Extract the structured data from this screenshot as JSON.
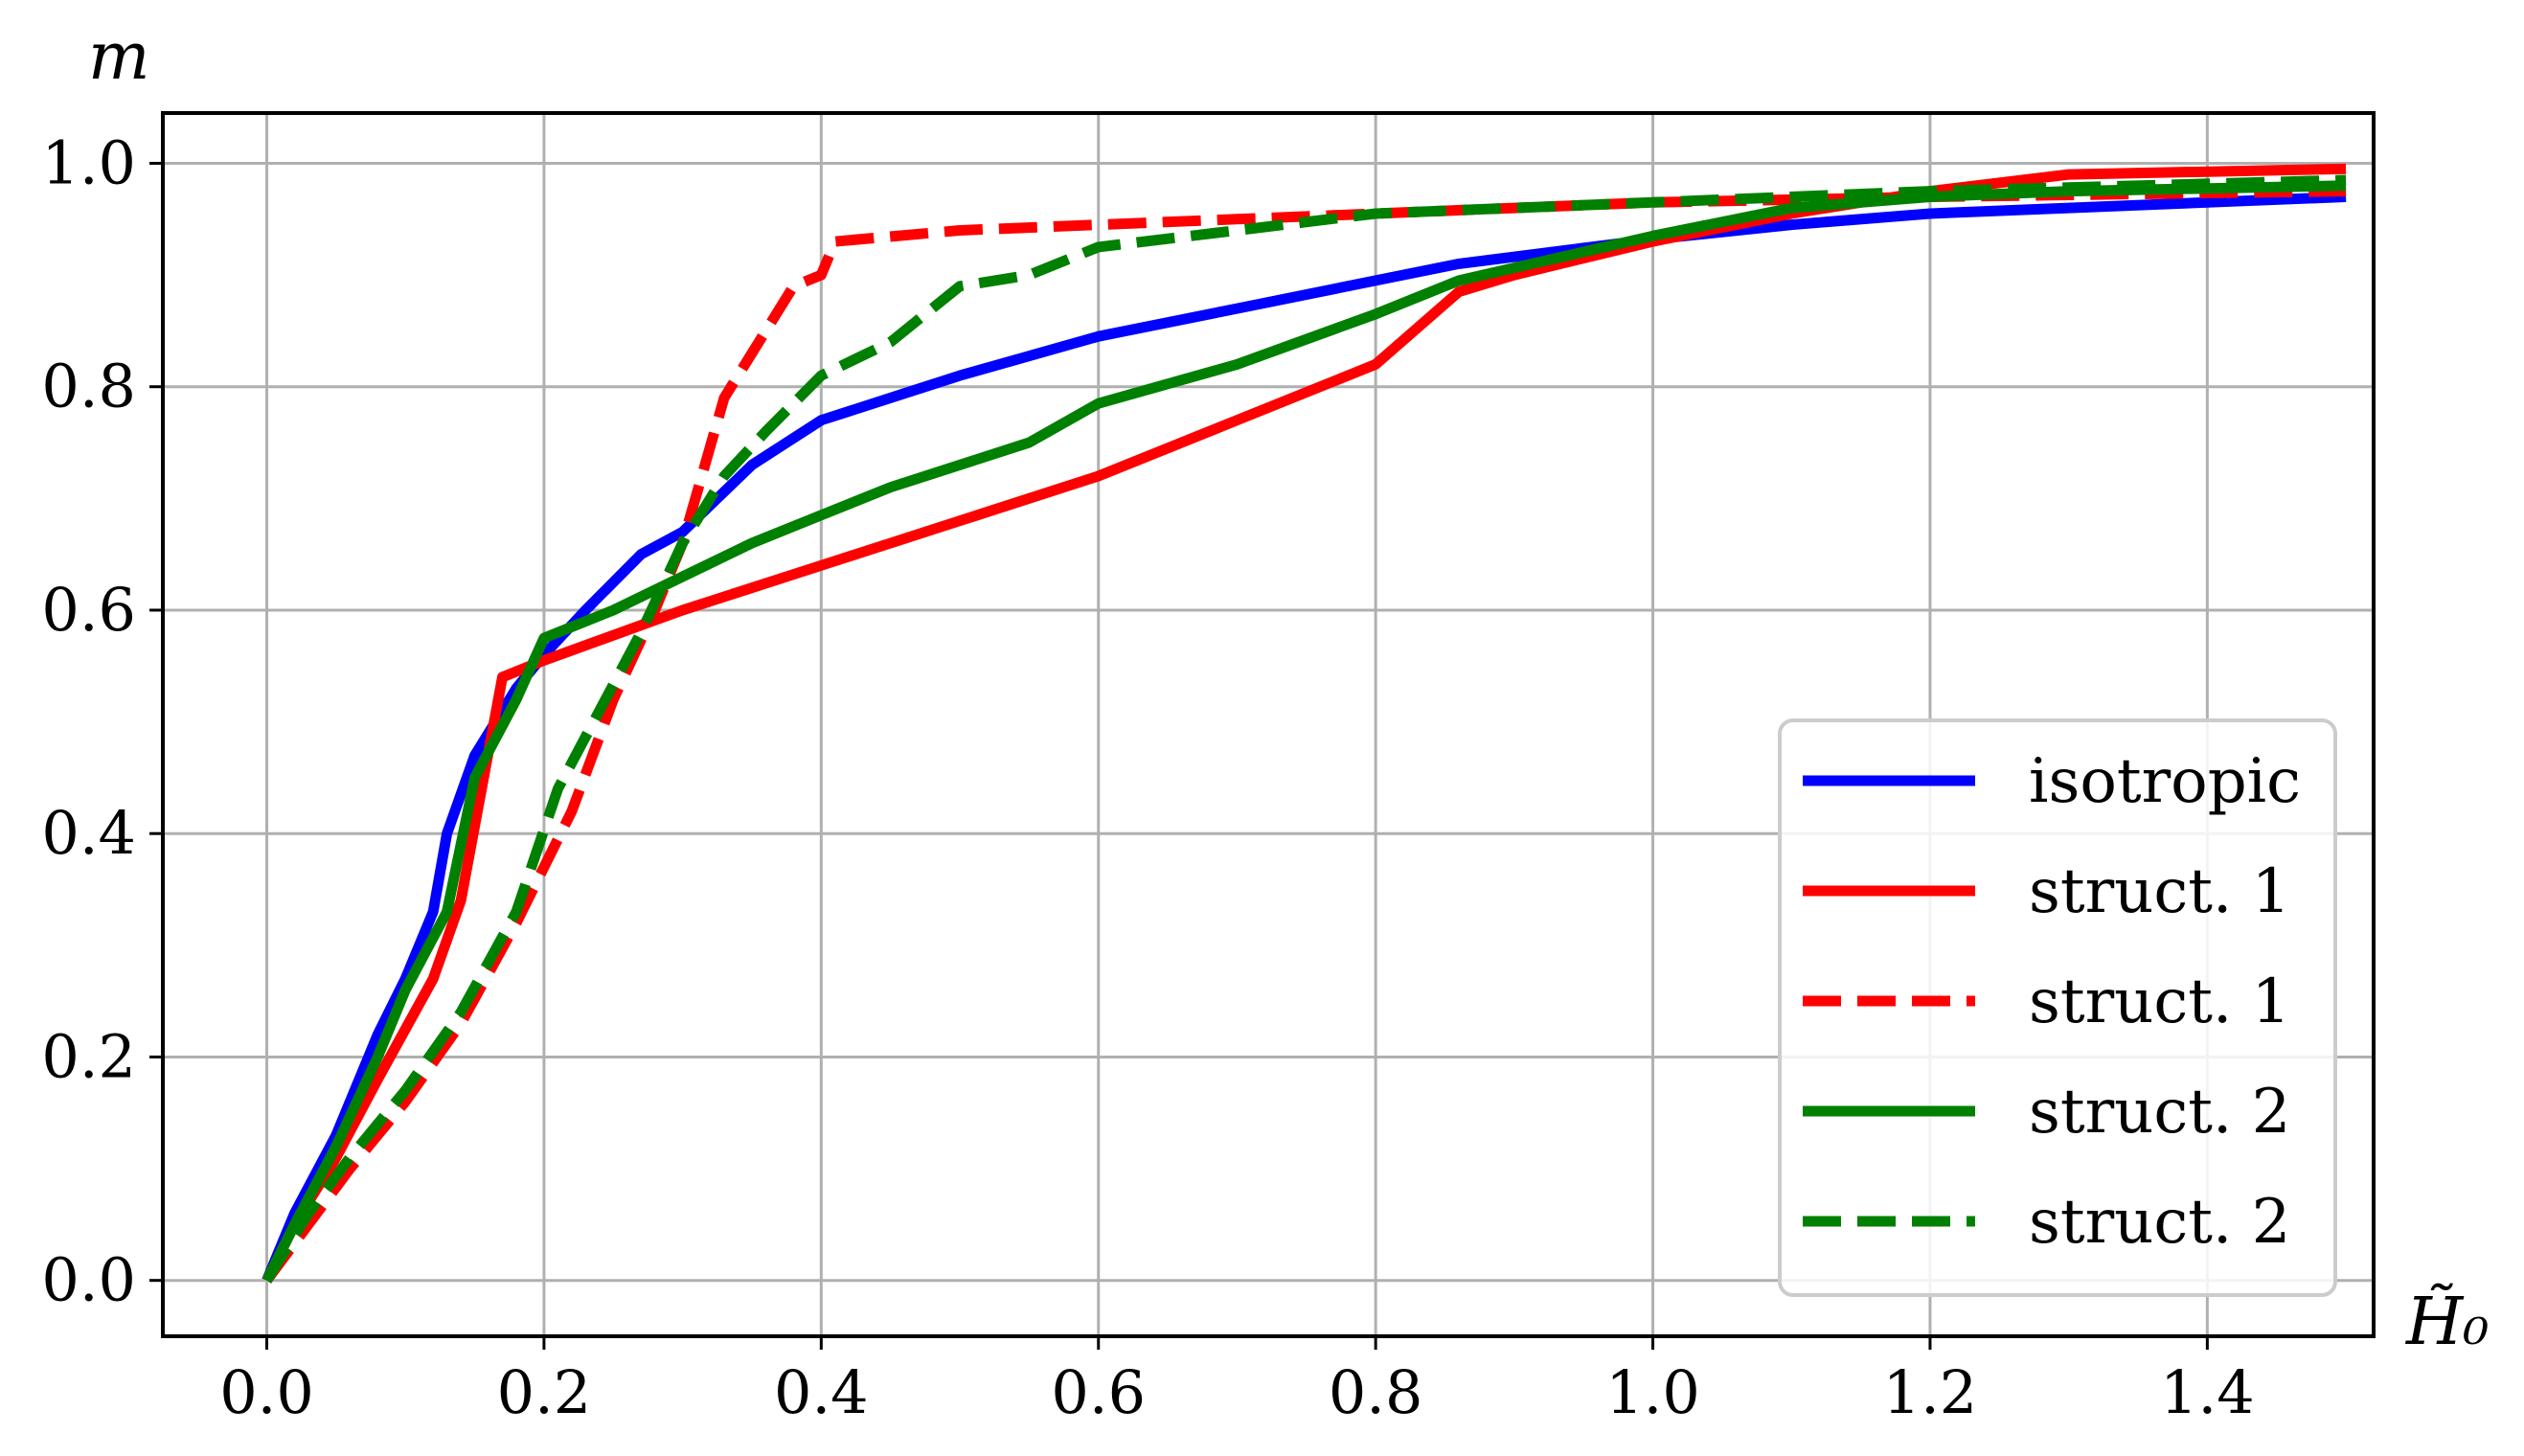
{
  "chart_data": {
    "type": "line",
    "title": "",
    "xlabel": "H̃₀",
    "ylabel": "m",
    "xlim": [
      -0.075,
      1.52
    ],
    "ylim": [
      -0.05,
      1.045
    ],
    "xticks": [
      0.0,
      0.2,
      0.4,
      0.6,
      0.8,
      1.0,
      1.2,
      1.4
    ],
    "xtick_labels": [
      "0.0",
      "0.2",
      "0.4",
      "0.6",
      "0.8",
      "1.0",
      "1.2",
      "1.4"
    ],
    "yticks": [
      0.0,
      0.2,
      0.4,
      0.6,
      0.8,
      1.0
    ],
    "ytick_labels": [
      "0.0",
      "0.2",
      "0.4",
      "0.6",
      "0.8",
      "1.0"
    ],
    "grid": true,
    "legend_position": "lower-right",
    "series": [
      {
        "name": "isotropic",
        "color": "#0000ff",
        "dash": "solid",
        "x": [
          0.0,
          0.02,
          0.05,
          0.08,
          0.1,
          0.12,
          0.13,
          0.15,
          0.18,
          0.2,
          0.23,
          0.27,
          0.3,
          0.35,
          0.4,
          0.45,
          0.5,
          0.6,
          0.7,
          0.8,
          0.86,
          1.0,
          1.1,
          1.2,
          1.3,
          1.5
        ],
        "y": [
          0.0,
          0.06,
          0.13,
          0.22,
          0.27,
          0.33,
          0.4,
          0.47,
          0.53,
          0.56,
          0.6,
          0.65,
          0.67,
          0.73,
          0.77,
          0.79,
          0.81,
          0.845,
          0.87,
          0.895,
          0.91,
          0.932,
          0.945,
          0.955,
          0.96,
          0.97
        ]
      },
      {
        "name": "struct. 1",
        "color": "#ff0000",
        "dash": "solid",
        "x": [
          0.0,
          0.02,
          0.05,
          0.08,
          0.12,
          0.14,
          0.17,
          0.2,
          0.3,
          0.4,
          0.5,
          0.6,
          0.7,
          0.8,
          0.86,
          0.9,
          1.0,
          1.1,
          1.2,
          1.3,
          1.5
        ],
        "y": [
          0.0,
          0.05,
          0.11,
          0.18,
          0.27,
          0.34,
          0.54,
          0.555,
          0.6,
          0.64,
          0.68,
          0.72,
          0.77,
          0.82,
          0.885,
          0.9,
          0.93,
          0.955,
          0.975,
          0.99,
          0.995
        ]
      },
      {
        "name": "struct. 1",
        "color": "#ff0000",
        "dash": "dashed",
        "x": [
          0.0,
          0.03,
          0.06,
          0.1,
          0.14,
          0.18,
          0.22,
          0.25,
          0.28,
          0.3,
          0.33,
          0.35,
          0.38,
          0.4,
          0.41,
          0.5,
          0.6,
          0.7,
          0.8,
          0.9,
          1.0,
          1.2,
          1.5
        ],
        "y": [
          0.0,
          0.05,
          0.1,
          0.16,
          0.23,
          0.32,
          0.42,
          0.52,
          0.6,
          0.66,
          0.79,
          0.83,
          0.89,
          0.9,
          0.93,
          0.94,
          0.945,
          0.95,
          0.955,
          0.96,
          0.965,
          0.97,
          0.975
        ]
      },
      {
        "name": "struct. 2",
        "color": "#008000",
        "dash": "solid",
        "x": [
          0.0,
          0.02,
          0.05,
          0.08,
          0.1,
          0.13,
          0.15,
          0.18,
          0.2,
          0.25,
          0.3,
          0.35,
          0.4,
          0.45,
          0.5,
          0.55,
          0.6,
          0.7,
          0.8,
          0.86,
          1.0,
          1.1,
          1.2,
          1.3,
          1.5
        ],
        "y": [
          0.0,
          0.05,
          0.12,
          0.2,
          0.26,
          0.33,
          0.45,
          0.52,
          0.575,
          0.6,
          0.63,
          0.66,
          0.685,
          0.71,
          0.73,
          0.75,
          0.785,
          0.82,
          0.865,
          0.895,
          0.935,
          0.96,
          0.97,
          0.975,
          0.98
        ]
      },
      {
        "name": "struct. 2",
        "color": "#008000",
        "dash": "dashed",
        "x": [
          0.0,
          0.03,
          0.06,
          0.1,
          0.14,
          0.18,
          0.21,
          0.24,
          0.27,
          0.3,
          0.33,
          0.36,
          0.4,
          0.45,
          0.5,
          0.55,
          0.6,
          0.7,
          0.8,
          0.9,
          1.0,
          1.2,
          1.5
        ],
        "y": [
          0.0,
          0.06,
          0.11,
          0.17,
          0.24,
          0.33,
          0.44,
          0.51,
          0.58,
          0.66,
          0.72,
          0.76,
          0.81,
          0.84,
          0.89,
          0.9,
          0.925,
          0.94,
          0.955,
          0.96,
          0.965,
          0.975,
          0.985
        ]
      }
    ]
  }
}
